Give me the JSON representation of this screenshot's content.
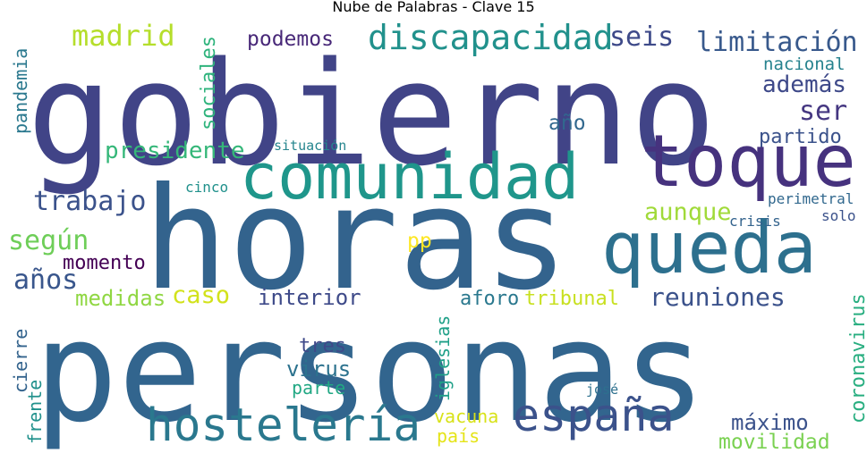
{
  "title": "Nube de Palabras - Clave 15",
  "words": [
    {
      "text": "gobierno",
      "color": "#414487"
    },
    {
      "text": "horas",
      "color": "#33638d"
    },
    {
      "text": "personas",
      "color": "#32658e"
    },
    {
      "text": "comunidad",
      "color": "#1f968b"
    },
    {
      "text": "toque",
      "color": "#46327e"
    },
    {
      "text": "queda",
      "color": "#2d708e"
    },
    {
      "text": "hostelería",
      "color": "#2a788e"
    },
    {
      "text": "españa",
      "color": "#3b528b"
    },
    {
      "text": "discapacidad",
      "color": "#21918c"
    },
    {
      "text": "madrid",
      "color": "#b5de2b"
    },
    {
      "text": "podemos",
      "color": "#482878"
    },
    {
      "text": "seis",
      "color": "#3e4a89"
    },
    {
      "text": "limitación",
      "color": "#38598c"
    },
    {
      "text": "nacional",
      "color": "#26828e"
    },
    {
      "text": "además",
      "color": "#3e4989"
    },
    {
      "text": "ser",
      "color": "#453781"
    },
    {
      "text": "partido",
      "color": "#3b528b"
    },
    {
      "text": "año",
      "color": "#31688e"
    },
    {
      "text": "presidente",
      "color": "#35b779"
    },
    {
      "text": "situación",
      "color": "#25858e"
    },
    {
      "text": "trabajo",
      "color": "#3b528b"
    },
    {
      "text": "según",
      "color": "#6ece58"
    },
    {
      "text": "años",
      "color": "#39568c"
    },
    {
      "text": "momento",
      "color": "#440154"
    },
    {
      "text": "medidas",
      "color": "#90d743"
    },
    {
      "text": "caso",
      "color": "#d2e21b"
    },
    {
      "text": "interior",
      "color": "#3e4a89"
    },
    {
      "text": "aforo",
      "color": "#2a788e"
    },
    {
      "text": "tribunal",
      "color": "#c8e020"
    },
    {
      "text": "reuniones",
      "color": "#3b528b"
    },
    {
      "text": "aunque",
      "color": "#a0da39"
    },
    {
      "text": "pp",
      "color": "#fde725"
    },
    {
      "text": "cinco",
      "color": "#21918c"
    },
    {
      "text": "perimetral",
      "color": "#31688e"
    },
    {
      "text": "crisis",
      "color": "#33638d"
    },
    {
      "text": "solo",
      "color": "#3b528b"
    },
    {
      "text": "tres",
      "color": "#3e4989"
    },
    {
      "text": "virus",
      "color": "#2c728e"
    },
    {
      "text": "parte",
      "color": "#22a884"
    },
    {
      "text": "vacuna",
      "color": "#d8e219"
    },
    {
      "text": "país",
      "color": "#e5e419"
    },
    {
      "text": "máximo",
      "color": "#3b528b"
    },
    {
      "text": "movilidad",
      "color": "#7ad151"
    },
    {
      "text": "josé",
      "color": "#2d708e"
    },
    {
      "text": "pandemia",
      "color": "#2a788e"
    },
    {
      "text": "sociales",
      "color": "#2eb37c"
    },
    {
      "text": "cierre",
      "color": "#33638d"
    },
    {
      "text": "frente",
      "color": "#21918c"
    },
    {
      "text": "iglesias",
      "color": "#1fa088"
    },
    {
      "text": "coronavirus",
      "color": "#28ae80"
    }
  ]
}
